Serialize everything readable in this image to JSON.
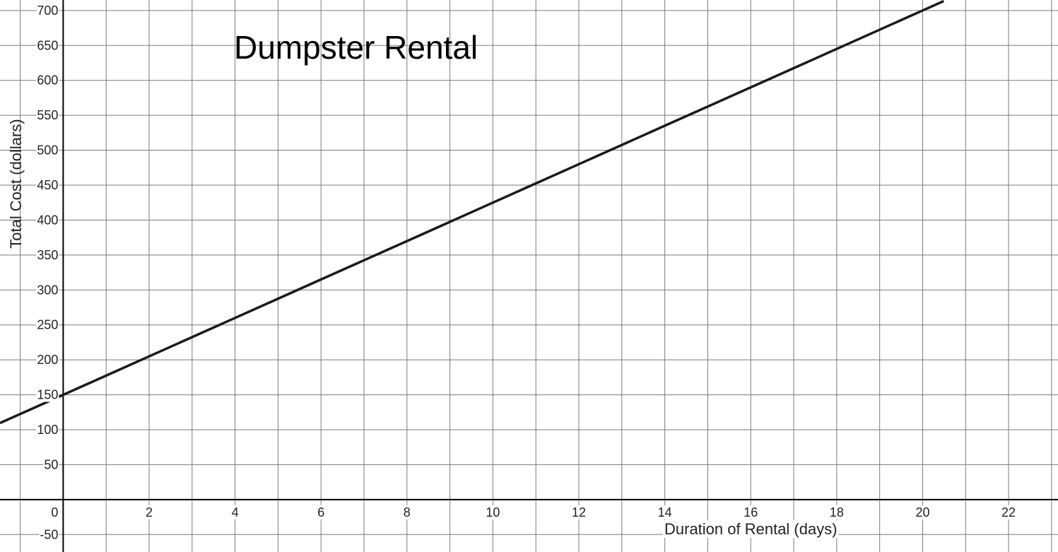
{
  "chart_data": {
    "type": "line",
    "title": "Dumpster Rental",
    "xlabel": "Duration of Rental (days)",
    "ylabel": "Total Cost (dollars)",
    "xlim": [
      -1.47,
      23.15
    ],
    "ylim": [
      -75,
      715
    ],
    "x_ticks": [
      2,
      4,
      6,
      8,
      10,
      12,
      14,
      16,
      18,
      20,
      22
    ],
    "y_ticks": [
      -50,
      50,
      100,
      150,
      200,
      250,
      300,
      350,
      400,
      450,
      500,
      550,
      600,
      650,
      700
    ],
    "origin_label": "0",
    "x_gridlines": [
      -1,
      1,
      2,
      3,
      4,
      5,
      6,
      7,
      8,
      9,
      10,
      11,
      12,
      13,
      14,
      15,
      16,
      17,
      18,
      19,
      20,
      21,
      22,
      23
    ],
    "y_gridlines": [
      -50,
      50,
      100,
      150,
      200,
      250,
      300,
      350,
      400,
      450,
      500,
      550,
      600,
      650,
      700
    ],
    "grid": true,
    "series": [
      {
        "x": [
          -1.47,
          0,
          2,
          4,
          6,
          8,
          10,
          12,
          14,
          16,
          18,
          20,
          20.49
        ],
        "y": [
          109.6,
          150,
          205,
          260,
          315,
          370,
          425,
          480,
          535,
          590,
          645,
          700,
          713.5
        ],
        "color": "#1a1a1a"
      }
    ]
  }
}
